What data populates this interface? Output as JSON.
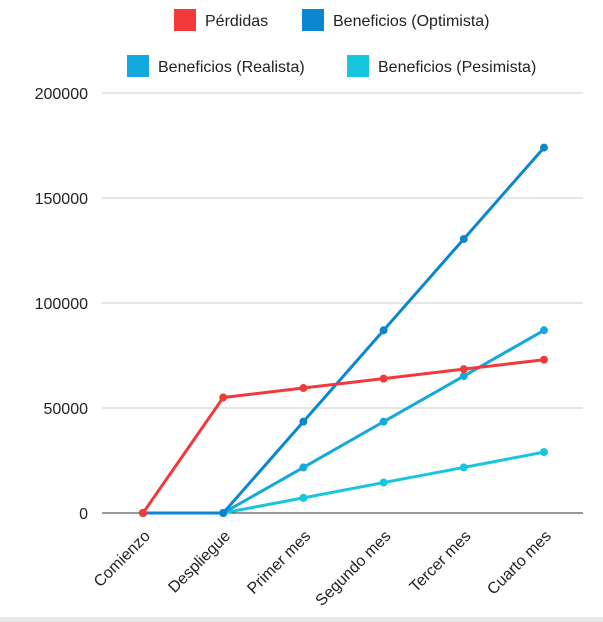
{
  "chart_data": {
    "type": "line",
    "categories": [
      "Comienzo",
      "Despliegue",
      "Primer mes",
      "Segundo mes",
      "Tercer mes",
      "Cuarto mes"
    ],
    "series": [
      {
        "name": "Pérdidas",
        "color": "#f23a3a",
        "values": [
          0,
          55000,
          59500,
          64000,
          68500,
          73000
        ]
      },
      {
        "name": "Beneficios (Optimista)",
        "color": "#0a87cf",
        "values": [
          0,
          0,
          43500,
          87000,
          130500,
          174000
        ]
      },
      {
        "name": "Beneficios (Realista)",
        "color": "#14a9dc",
        "values": [
          0,
          0,
          21700,
          43500,
          65200,
          87000
        ]
      },
      {
        "name": "Beneficios (Pesimista)",
        "color": "#15c6dd",
        "values": [
          0,
          0,
          7200,
          14500,
          21700,
          29000
        ]
      }
    ],
    "yticks": [
      "0",
      "50000",
      "100000",
      "150000",
      "200000"
    ],
    "ylim": [
      0,
      200000
    ],
    "grid": true,
    "legend_position": "top"
  }
}
